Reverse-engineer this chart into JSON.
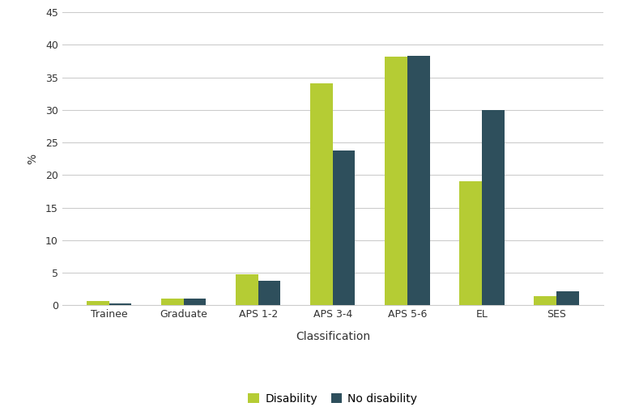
{
  "categories": [
    "Trainee",
    "Graduate",
    "APS 1-2",
    "APS 3-4",
    "APS 5-6",
    "EL",
    "SES"
  ],
  "disability": [
    0.7,
    1.0,
    4.8,
    34.1,
    38.2,
    19.1,
    1.4
  ],
  "no_disability": [
    0.3,
    1.0,
    3.7,
    23.8,
    38.3,
    30.0,
    2.2
  ],
  "disability_color": "#b5cc34",
  "no_disability_color": "#2e4f5c",
  "xlabel": "Classification",
  "ylabel": "%",
  "ylim": [
    0,
    45
  ],
  "yticks": [
    0,
    5,
    10,
    15,
    20,
    25,
    30,
    35,
    40,
    45
  ],
  "legend_labels": [
    "Disability",
    "No disability"
  ],
  "bar_width": 0.3,
  "background_color": "#ffffff",
  "grid_color": "#cccccc",
  "figsize": [
    7.68,
    5.03
  ],
  "dpi": 100
}
